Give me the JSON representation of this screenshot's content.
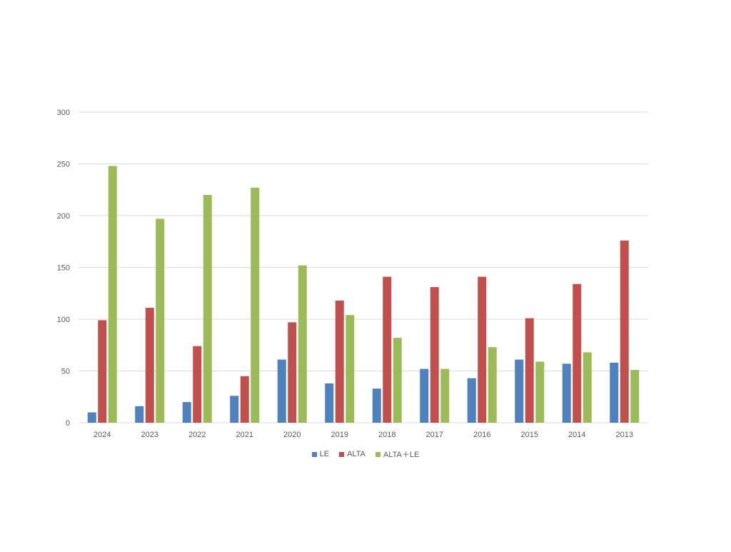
{
  "chart_data": {
    "type": "bar",
    "title": "",
    "xlabel": "",
    "ylabel": "",
    "categories": [
      "2024",
      "2023",
      "2022",
      "2021",
      "2020",
      "2019",
      "2018",
      "2017",
      "2016",
      "2015",
      "2014",
      "2013"
    ],
    "series": [
      {
        "name": "LE",
        "color": "#4F81BD",
        "values": [
          10,
          16,
          20,
          26,
          61,
          38,
          33,
          52,
          43,
          61,
          57,
          58
        ]
      },
      {
        "name": "ALTA",
        "color": "#C0504D",
        "values": [
          99,
          111,
          74,
          45,
          97,
          118,
          141,
          131,
          141,
          101,
          134,
          176
        ]
      },
      {
        "name": "ALTA＋LE",
        "color": "#9BBB59",
        "values": [
          248,
          197,
          220,
          227,
          152,
          104,
          82,
          52,
          73,
          59,
          68,
          51
        ]
      }
    ],
    "yticks": [
      "0",
      "50",
      "100",
      "150",
      "200",
      "250",
      "300"
    ],
    "ylim": [
      0,
      300
    ],
    "grid": true,
    "legend_position": "bottom",
    "gridline_color": "#d9d9d9"
  }
}
